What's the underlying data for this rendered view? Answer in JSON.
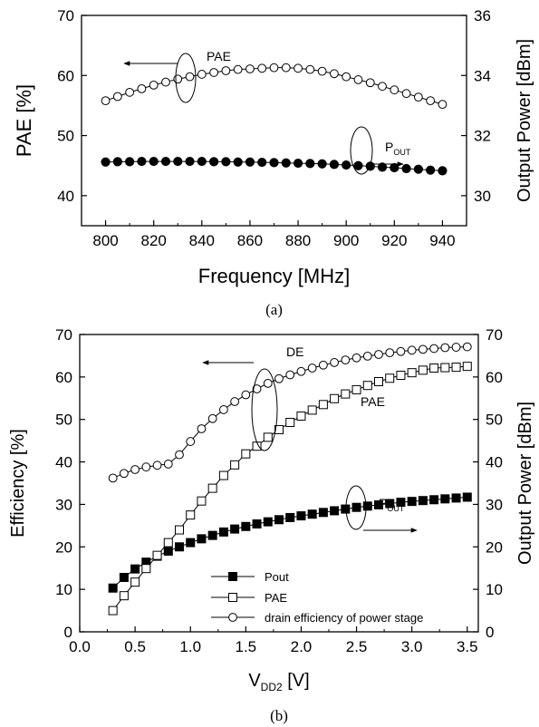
{
  "chart_data": [
    {
      "type": "scatter",
      "caption": "(a)",
      "xlabel": "Frequency [MHz]",
      "ylabel": "PAE [%]",
      "y2label": "Output Power [dBm]",
      "xlim": [
        790,
        950
      ],
      "ylim": [
        35,
        70
      ],
      "y2lim": [
        29,
        36
      ],
      "xticks": [
        800,
        820,
        840,
        860,
        880,
        900,
        920,
        940
      ],
      "yticks": [
        40,
        50,
        60,
        70
      ],
      "y2ticks": [
        30,
        32,
        34,
        36
      ],
      "x": [
        800,
        805,
        810,
        815,
        820,
        825,
        830,
        835,
        840,
        845,
        850,
        855,
        860,
        865,
        870,
        875,
        880,
        885,
        890,
        895,
        900,
        905,
        910,
        915,
        920,
        925,
        930,
        935,
        940
      ],
      "series": [
        {
          "name": "PAE",
          "axis": "left",
          "marker": "open-circle",
          "values": [
            55.8,
            56.5,
            57.2,
            57.8,
            58.4,
            58.9,
            59.4,
            59.8,
            60.2,
            60.5,
            60.8,
            61.0,
            61.1,
            61.2,
            61.3,
            61.3,
            61.2,
            61.0,
            60.7,
            60.3,
            59.8,
            59.3,
            58.8,
            58.2,
            57.6,
            57.0,
            56.4,
            55.8,
            55.2
          ]
        },
        {
          "name": "P_OUT",
          "axis": "right",
          "marker": "filled-circle",
          "values": [
            31.12,
            31.13,
            31.13,
            31.14,
            31.14,
            31.14,
            31.14,
            31.14,
            31.14,
            31.13,
            31.13,
            31.12,
            31.12,
            31.11,
            31.1,
            31.09,
            31.08,
            31.07,
            31.06,
            31.04,
            31.02,
            31.0,
            30.98,
            30.95,
            30.93,
            30.9,
            30.88,
            30.85,
            30.83
          ]
        }
      ],
      "annotations": [
        {
          "text": "PAE",
          "arrow": "left"
        },
        {
          "text": "P",
          "sub": "OUT",
          "arrow": "right"
        }
      ]
    },
    {
      "type": "scatter",
      "caption": "(b)",
      "xlabel": "V",
      "xlabel_sub": "DD2",
      "xlabel_unit": " [V]",
      "ylabel": "Efficiency [%]",
      "y2label": "Output Power [dBm]",
      "xlim": [
        0.0,
        3.6
      ],
      "ylim": [
        0,
        70
      ],
      "y2lim": [
        0,
        70
      ],
      "xticks": [
        0.0,
        0.5,
        1.0,
        1.5,
        2.0,
        2.5,
        3.0,
        3.5
      ],
      "yticks": [
        0,
        10,
        20,
        30,
        40,
        50,
        60,
        70
      ],
      "y2ticks": [
        0,
        10,
        20,
        30,
        40,
        50,
        60,
        70
      ],
      "x": [
        0.3,
        0.4,
        0.5,
        0.6,
        0.7,
        0.8,
        0.9,
        1.0,
        1.1,
        1.2,
        1.3,
        1.4,
        1.5,
        1.6,
        1.7,
        1.8,
        1.9,
        2.0,
        2.1,
        2.2,
        2.3,
        2.4,
        2.5,
        2.6,
        2.7,
        2.8,
        2.9,
        3.0,
        3.1,
        3.2,
        3.3,
        3.4,
        3.5
      ],
      "series": [
        {
          "name": "Pout",
          "axis": "right",
          "marker": "filled-square",
          "values": [
            10.3,
            12.8,
            14.8,
            16.4,
            17.8,
            19.0,
            20.0,
            21.0,
            21.9,
            22.7,
            23.5,
            24.2,
            24.8,
            25.4,
            25.9,
            26.4,
            26.9,
            27.3,
            27.7,
            28.1,
            28.5,
            28.9,
            29.3,
            29.6,
            29.9,
            30.2,
            30.5,
            30.7,
            30.9,
            31.1,
            31.3,
            31.5,
            31.7
          ]
        },
        {
          "name": "PAE",
          "axis": "left",
          "marker": "open-square",
          "values": [
            5.0,
            8.5,
            11.7,
            14.9,
            18.0,
            21.0,
            24.0,
            27.5,
            30.8,
            33.8,
            36.8,
            39.3,
            41.9,
            43.7,
            45.8,
            47.6,
            49.3,
            50.8,
            52.2,
            53.5,
            54.9,
            56.0,
            57.0,
            58.0,
            58.9,
            59.7,
            60.4,
            61.0,
            61.6,
            62.1,
            62.2,
            62.3,
            62.5
          ]
        },
        {
          "name": "drain efficiency of power stage",
          "axis": "left",
          "marker": "open-circle",
          "values": [
            36.2,
            37.3,
            38.2,
            38.8,
            39.2,
            39.5,
            41.7,
            44.8,
            47.8,
            50.2,
            52.3,
            54.2,
            55.8,
            57.2,
            58.5,
            59.6,
            60.5,
            61.3,
            62.1,
            62.8,
            63.4,
            64.0,
            64.5,
            64.9,
            65.3,
            65.7,
            66.0,
            66.3,
            66.5,
            66.7,
            66.9,
            67.0,
            67.1
          ]
        }
      ],
      "annotations": [
        {
          "text": "DE",
          "arrow": "left"
        },
        {
          "text": "PAE"
        },
        {
          "text": "P",
          "sub": "OUT",
          "arrow": "right"
        }
      ]
    }
  ]
}
